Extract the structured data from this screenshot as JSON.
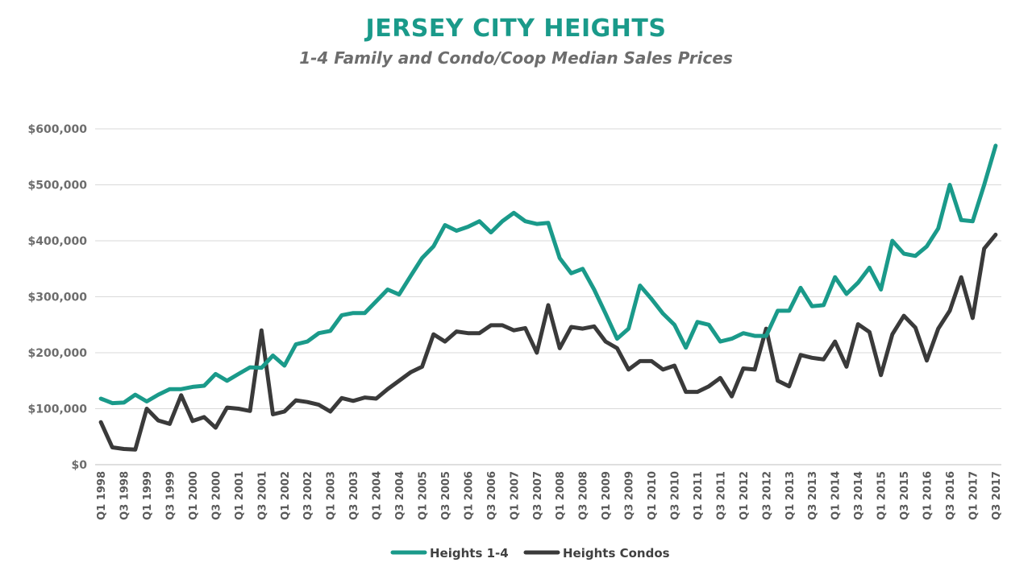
{
  "chart_data": {
    "type": "line",
    "title": "JERSEY CITY HEIGHTS",
    "subtitle": "1-4 Family and Condo/Coop Median Sales Prices",
    "xlabel": "",
    "ylabel": "",
    "ylim": [
      0,
      600000
    ],
    "yticks": [
      "$0",
      "$100,000",
      "$200,000",
      "$300,000",
      "$400,000",
      "$500,000",
      "$600,000"
    ],
    "grid": true,
    "legend_position": "bottom",
    "categories": [
      "Q1 1998",
      "Q2 1998",
      "Q3 1998",
      "Q4 1998",
      "Q1 1999",
      "Q2 1999",
      "Q3 1999",
      "Q4 1999",
      "Q1 2000",
      "Q2 2000",
      "Q3 2000",
      "Q4 2000",
      "Q1 2001",
      "Q2 2001",
      "Q3 2001",
      "Q4 2001",
      "Q1 2002",
      "Q2 2002",
      "Q3 2002",
      "Q4 2002",
      "Q1 2003",
      "Q2 2003",
      "Q3 2003",
      "Q4 2003",
      "Q1 2004",
      "Q2 2004",
      "Q3 2004",
      "Q4 2004",
      "Q1 2005",
      "Q2 2005",
      "Q3 2005",
      "Q4 2005",
      "Q1 2006",
      "Q2 2006",
      "Q3 2006",
      "Q4 2006",
      "Q1 2007",
      "Q2 2007",
      "Q3 2007",
      "Q4 2007",
      "Q1 2008",
      "Q2 2008",
      "Q3 2008",
      "Q4 2008",
      "Q1 2009",
      "Q2 2009",
      "Q3 2009",
      "Q4 2009",
      "Q1 2010",
      "Q2 2010",
      "Q3 2010",
      "Q4 2010",
      "Q1 2011",
      "Q2 2011",
      "Q3 2011",
      "Q4 2011",
      "Q1 2012",
      "Q2 2012",
      "Q3 2012",
      "Q4 2012",
      "Q1 2013",
      "Q2 2013",
      "Q3 2013",
      "Q4 2013",
      "Q1 2014",
      "Q2 2014",
      "Q3 2014",
      "Q4 2014",
      "Q1 2015",
      "Q2 2015",
      "Q3 2015",
      "Q4 2015",
      "Q1 2016",
      "Q2 2016",
      "Q3 2016",
      "Q4 2016",
      "Q1 2017",
      "Q2 2017",
      "Q3 2017"
    ],
    "tick_labels": [
      "Q1 1998",
      "Q3 1998",
      "Q1 1999",
      "Q3 1999",
      "Q1 2000",
      "Q3 2000",
      "Q1 2001",
      "Q3 2001",
      "Q1 2002",
      "Q3 2002",
      "Q1 2003",
      "Q3 2003",
      "Q1 2004",
      "Q3 2004",
      "Q1 2005",
      "Q3 2005",
      "Q1 2006",
      "Q3 2006",
      "Q1 2007",
      "Q3 2007",
      "Q1 2008",
      "Q3 2008",
      "Q1 2009",
      "Q3 2009",
      "Q1 2010",
      "Q3 2010",
      "Q1 2011",
      "Q3 2011",
      "Q1 2012",
      "Q3 2012",
      "Q1 2013",
      "Q3 2013",
      "Q1 2014",
      "Q3 2014",
      "Q1 2015",
      "Q3 2015",
      "Q1 2016",
      "Q3 2016",
      "Q1 2017",
      "Q3 2017"
    ],
    "series": [
      {
        "name": "Heights 1-4",
        "color": "#1a9a8a",
        "values": [
          118000,
          110000,
          111000,
          125000,
          113000,
          125000,
          135000,
          135000,
          139000,
          141000,
          162000,
          150000,
          162000,
          174000,
          173000,
          195000,
          177000,
          215000,
          220000,
          235000,
          239000,
          267000,
          271000,
          271000,
          292000,
          313000,
          304000,
          337000,
          369000,
          390000,
          428000,
          418000,
          425000,
          435000,
          415000,
          435000,
          450000,
          435000,
          430000,
          432000,
          369000,
          342000,
          350000,
          313000,
          270000,
          225000,
          243000,
          320000,
          296000,
          270000,
          250000,
          209000,
          255000,
          250000,
          220000,
          225000,
          235000,
          230000,
          230000,
          275000,
          275000,
          316000,
          283000,
          285000,
          335000,
          305000,
          325000,
          352000,
          313000,
          400000,
          377000,
          373000,
          390000,
          422000,
          500000,
          437000,
          435000,
          500000,
          570000
        ]
      },
      {
        "name": "Heights Condos",
        "color": "#3a3a3a",
        "values": [
          76000,
          31000,
          28000,
          27000,
          100000,
          79000,
          73000,
          124000,
          78000,
          85000,
          66000,
          102000,
          100000,
          96000,
          240000,
          90000,
          95000,
          115000,
          112000,
          107000,
          95000,
          119000,
          114000,
          120000,
          118000,
          135000,
          150000,
          165000,
          175000,
          233000,
          220000,
          238000,
          235000,
          235000,
          249000,
          249000,
          240000,
          244000,
          200000,
          285000,
          208000,
          246000,
          243000,
          247000,
          220000,
          208000,
          170000,
          185000,
          185000,
          170000,
          177000,
          130000,
          130000,
          140000,
          155000,
          122000,
          172000,
          170000,
          243000,
          150000,
          140000,
          196000,
          191000,
          188000,
          220000,
          175000,
          251000,
          237000,
          160000,
          233000,
          266000,
          245000,
          186000,
          243000,
          275000,
          335000,
          262000,
          386000,
          411000
        ]
      }
    ]
  }
}
